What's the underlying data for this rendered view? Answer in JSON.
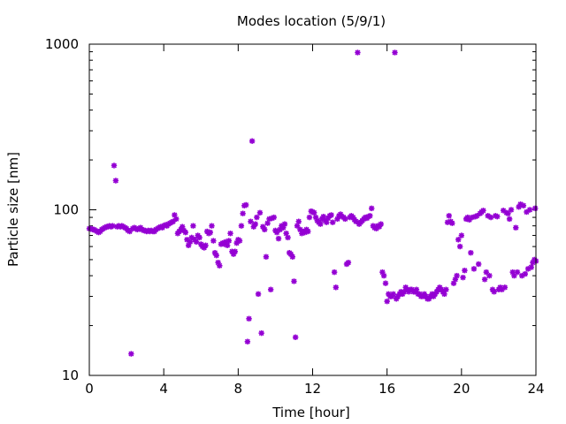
{
  "chart_data": {
    "type": "scatter",
    "title": "Modes location (5/9/1)",
    "xlabel": "Time [hour]",
    "ylabel": "Particle size [nm]",
    "xlim": [
      0,
      24
    ],
    "ylim": [
      10,
      1000
    ],
    "yscale": "log",
    "x_ticks": [
      0,
      4,
      8,
      12,
      16,
      20,
      24
    ],
    "y_ticks": [
      10,
      100,
      1000
    ],
    "marker": "asterisk",
    "grid": false,
    "legend": "none",
    "color": "#9400d3",
    "series": [
      {
        "points": [
          [
            0.0,
            77
          ],
          [
            0.08,
            77
          ],
          [
            0.17,
            76
          ],
          [
            0.25,
            76
          ],
          [
            0.33,
            75
          ],
          [
            0.42,
            74
          ],
          [
            0.5,
            73
          ],
          [
            0.58,
            74
          ],
          [
            0.67,
            76
          ],
          [
            0.75,
            77
          ],
          [
            0.83,
            78
          ],
          [
            0.92,
            79
          ],
          [
            1.0,
            79
          ],
          [
            1.08,
            80
          ],
          [
            1.17,
            79
          ],
          [
            1.25,
            80
          ],
          [
            1.33,
            185
          ],
          [
            1.42,
            150
          ],
          [
            1.5,
            79
          ],
          [
            1.58,
            80
          ],
          [
            1.67,
            79
          ],
          [
            1.75,
            80
          ],
          [
            1.83,
            79
          ],
          [
            1.92,
            78
          ],
          [
            2.0,
            77
          ],
          [
            2.08,
            75
          ],
          [
            2.17,
            74
          ],
          [
            2.25,
            13.5
          ],
          [
            2.33,
            77
          ],
          [
            2.42,
            78
          ],
          [
            2.5,
            77
          ],
          [
            2.58,
            76
          ],
          [
            2.67,
            77
          ],
          [
            2.75,
            78
          ],
          [
            2.83,
            76
          ],
          [
            2.92,
            75
          ],
          [
            3.0,
            75
          ],
          [
            3.08,
            74
          ],
          [
            3.17,
            75
          ],
          [
            3.25,
            74
          ],
          [
            3.33,
            75
          ],
          [
            3.42,
            74
          ],
          [
            3.5,
            74
          ],
          [
            3.58,
            76
          ],
          [
            3.67,
            77
          ],
          [
            3.75,
            78
          ],
          [
            3.83,
            79
          ],
          [
            3.92,
            78
          ],
          [
            4.0,
            80
          ],
          [
            4.08,
            81
          ],
          [
            4.17,
            80
          ],
          [
            4.25,
            82
          ],
          [
            4.33,
            83
          ],
          [
            4.42,
            84
          ],
          [
            4.5,
            85
          ],
          [
            4.58,
            93
          ],
          [
            4.67,
            88
          ],
          [
            4.75,
            72
          ],
          [
            4.83,
            74
          ],
          [
            4.92,
            76
          ],
          [
            5.0,
            79
          ],
          [
            5.08,
            75
          ],
          [
            5.17,
            73
          ],
          [
            5.25,
            66
          ],
          [
            5.33,
            61
          ],
          [
            5.42,
            64
          ],
          [
            5.5,
            68
          ],
          [
            5.58,
            80
          ],
          [
            5.67,
            66
          ],
          [
            5.75,
            64
          ],
          [
            5.83,
            70
          ],
          [
            5.92,
            68
          ],
          [
            6.0,
            62
          ],
          [
            6.08,
            60
          ],
          [
            6.17,
            59
          ],
          [
            6.25,
            61
          ],
          [
            6.33,
            74
          ],
          [
            6.42,
            72
          ],
          [
            6.5,
            73
          ],
          [
            6.58,
            80
          ],
          [
            6.67,
            65
          ],
          [
            6.75,
            55
          ],
          [
            6.83,
            53
          ],
          [
            6.92,
            48
          ],
          [
            7.0,
            46
          ],
          [
            7.08,
            62
          ],
          [
            7.17,
            63
          ],
          [
            7.25,
            62
          ],
          [
            7.33,
            64
          ],
          [
            7.42,
            61
          ],
          [
            7.5,
            65
          ],
          [
            7.58,
            72
          ],
          [
            7.67,
            56
          ],
          [
            7.75,
            54
          ],
          [
            7.83,
            56
          ],
          [
            7.92,
            63
          ],
          [
            8.0,
            66
          ],
          [
            8.08,
            65
          ],
          [
            8.17,
            80
          ],
          [
            8.25,
            95
          ],
          [
            8.33,
            106
          ],
          [
            8.42,
            107
          ],
          [
            8.5,
            16
          ],
          [
            8.58,
            22
          ],
          [
            8.67,
            85
          ],
          [
            8.75,
            260
          ],
          [
            8.83,
            79
          ],
          [
            8.92,
            82
          ],
          [
            9.0,
            90
          ],
          [
            9.08,
            31
          ],
          [
            9.17,
            96
          ],
          [
            9.25,
            18
          ],
          [
            9.33,
            79
          ],
          [
            9.42,
            76
          ],
          [
            9.5,
            52
          ],
          [
            9.58,
            83
          ],
          [
            9.67,
            88
          ],
          [
            9.75,
            33
          ],
          [
            9.83,
            89
          ],
          [
            9.92,
            90
          ],
          [
            10.0,
            75
          ],
          [
            10.08,
            73
          ],
          [
            10.17,
            67
          ],
          [
            10.25,
            76
          ],
          [
            10.33,
            80
          ],
          [
            10.42,
            78
          ],
          [
            10.5,
            82
          ],
          [
            10.58,
            72
          ],
          [
            10.67,
            68
          ],
          [
            10.75,
            55
          ],
          [
            10.83,
            54
          ],
          [
            10.92,
            52
          ],
          [
            11.0,
            37
          ],
          [
            11.08,
            17
          ],
          [
            11.17,
            80
          ],
          [
            11.25,
            85
          ],
          [
            11.33,
            76
          ],
          [
            11.42,
            72
          ],
          [
            11.5,
            74
          ],
          [
            11.58,
            73
          ],
          [
            11.67,
            76
          ],
          [
            11.75,
            74
          ],
          [
            11.83,
            90
          ],
          [
            11.92,
            98
          ],
          [
            12.0,
            97
          ],
          [
            12.08,
            96
          ],
          [
            12.17,
            90
          ],
          [
            12.25,
            86
          ],
          [
            12.33,
            84
          ],
          [
            12.42,
            82
          ],
          [
            12.5,
            88
          ],
          [
            12.58,
            91
          ],
          [
            12.67,
            86
          ],
          [
            12.75,
            84
          ],
          [
            12.83,
            89
          ],
          [
            12.92,
            92
          ],
          [
            13.0,
            93
          ],
          [
            13.08,
            84
          ],
          [
            13.17,
            42
          ],
          [
            13.25,
            34
          ],
          [
            13.33,
            88
          ],
          [
            13.42,
            92
          ],
          [
            13.5,
            94
          ],
          [
            13.58,
            91
          ],
          [
            13.67,
            90
          ],
          [
            13.75,
            88
          ],
          [
            13.83,
            47
          ],
          [
            13.92,
            48
          ],
          [
            14.0,
            90
          ],
          [
            14.08,
            92
          ],
          [
            14.17,
            90
          ],
          [
            14.25,
            87
          ],
          [
            14.33,
            85
          ],
          [
            14.42,
            890
          ],
          [
            14.5,
            82
          ],
          [
            14.58,
            84
          ],
          [
            14.67,
            86
          ],
          [
            14.75,
            88
          ],
          [
            14.83,
            90
          ],
          [
            14.92,
            89
          ],
          [
            15.0,
            91
          ],
          [
            15.08,
            92
          ],
          [
            15.17,
            102
          ],
          [
            15.25,
            80
          ],
          [
            15.33,
            78
          ],
          [
            15.42,
            77
          ],
          [
            15.5,
            80
          ],
          [
            15.58,
            79
          ],
          [
            15.67,
            82
          ],
          [
            15.75,
            42
          ],
          [
            15.83,
            40
          ],
          [
            15.92,
            36
          ],
          [
            16.0,
            28
          ],
          [
            16.08,
            31
          ],
          [
            16.17,
            30
          ],
          [
            16.25,
            30
          ],
          [
            16.33,
            31
          ],
          [
            16.42,
            890
          ],
          [
            16.5,
            29
          ],
          [
            16.58,
            30
          ],
          [
            16.67,
            31
          ],
          [
            16.75,
            32
          ],
          [
            16.83,
            31
          ],
          [
            16.92,
            32
          ],
          [
            17.0,
            34
          ],
          [
            17.08,
            33
          ],
          [
            17.17,
            32
          ],
          [
            17.25,
            33
          ],
          [
            17.33,
            33
          ],
          [
            17.42,
            32
          ],
          [
            17.5,
            32
          ],
          [
            17.58,
            33
          ],
          [
            17.67,
            31
          ],
          [
            17.75,
            31
          ],
          [
            17.83,
            30
          ],
          [
            17.92,
            30
          ],
          [
            18.0,
            31
          ],
          [
            18.08,
            30
          ],
          [
            18.17,
            29
          ],
          [
            18.25,
            29
          ],
          [
            18.33,
            30
          ],
          [
            18.42,
            31
          ],
          [
            18.5,
            30
          ],
          [
            18.58,
            31
          ],
          [
            18.67,
            32
          ],
          [
            18.75,
            33
          ],
          [
            18.83,
            34
          ],
          [
            18.92,
            33
          ],
          [
            19.0,
            32
          ],
          [
            19.08,
            31
          ],
          [
            19.17,
            33
          ],
          [
            19.25,
            84
          ],
          [
            19.33,
            92
          ],
          [
            19.42,
            85
          ],
          [
            19.5,
            83
          ],
          [
            19.58,
            36
          ],
          [
            19.67,
            38
          ],
          [
            19.75,
            40
          ],
          [
            19.83,
            66
          ],
          [
            19.92,
            60
          ],
          [
            20.0,
            70
          ],
          [
            20.08,
            39
          ],
          [
            20.17,
            43
          ],
          [
            20.25,
            88
          ],
          [
            20.33,
            90
          ],
          [
            20.42,
            87
          ],
          [
            20.5,
            55
          ],
          [
            20.58,
            90
          ],
          [
            20.67,
            44
          ],
          [
            20.75,
            91
          ],
          [
            20.83,
            92
          ],
          [
            20.92,
            47
          ],
          [
            21.0,
            95
          ],
          [
            21.08,
            97
          ],
          [
            21.17,
            99
          ],
          [
            21.25,
            38
          ],
          [
            21.33,
            42
          ],
          [
            21.42,
            92
          ],
          [
            21.5,
            40
          ],
          [
            21.58,
            90
          ],
          [
            21.67,
            33
          ],
          [
            21.75,
            32
          ],
          [
            21.83,
            92
          ],
          [
            21.92,
            91
          ],
          [
            22.0,
            33
          ],
          [
            22.08,
            34
          ],
          [
            22.17,
            33
          ],
          [
            22.25,
            99
          ],
          [
            22.33,
            34
          ],
          [
            22.42,
            96
          ],
          [
            22.5,
            95
          ],
          [
            22.58,
            88
          ],
          [
            22.67,
            100
          ],
          [
            22.75,
            42
          ],
          [
            22.83,
            40
          ],
          [
            22.92,
            78
          ],
          [
            23.0,
            42
          ],
          [
            23.08,
            104
          ],
          [
            23.17,
            108
          ],
          [
            23.25,
            40
          ],
          [
            23.33,
            106
          ],
          [
            23.42,
            41
          ],
          [
            23.5,
            97
          ],
          [
            23.58,
            44
          ],
          [
            23.67,
            100
          ],
          [
            23.75,
            45
          ],
          [
            23.83,
            48
          ],
          [
            23.92,
            50
          ],
          [
            23.96,
            102
          ],
          [
            24.0,
            49
          ]
        ]
      }
    ]
  }
}
